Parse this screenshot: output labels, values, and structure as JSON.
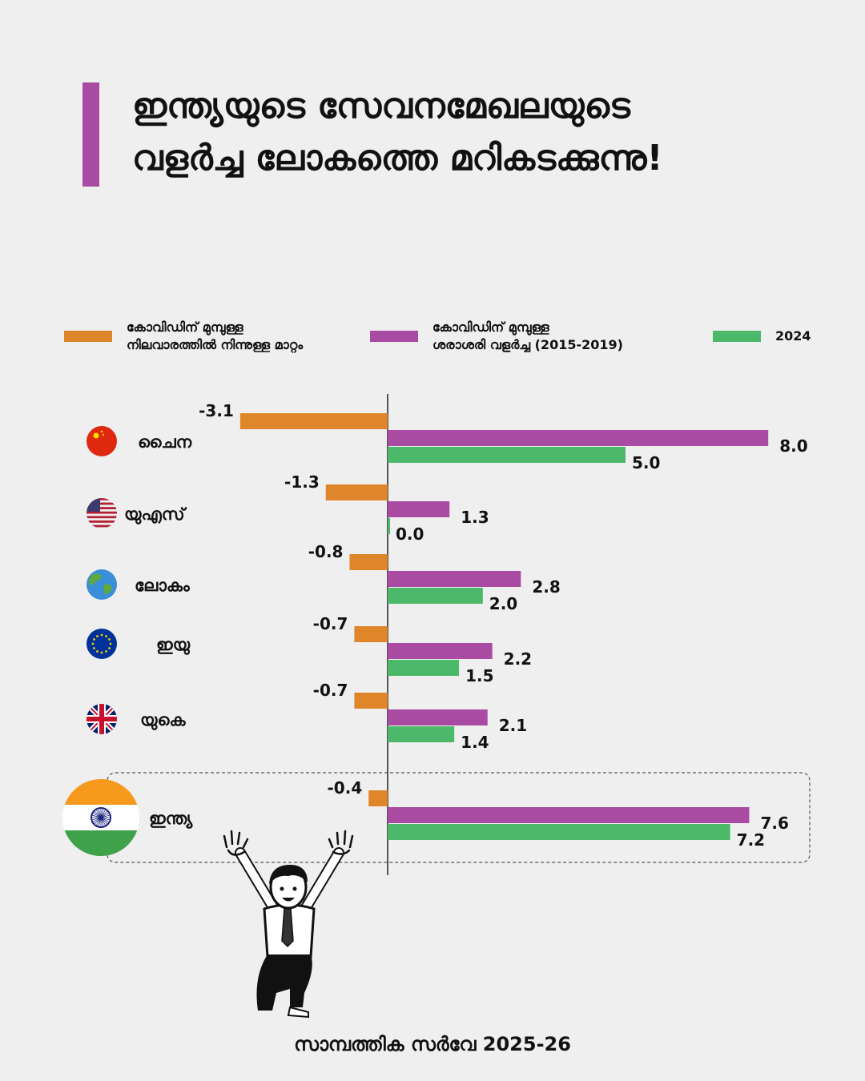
{
  "title": {
    "line1": "ഇന്ത്യയുടെ സേവനമേഖലയുടെ",
    "line2": "വളർച്ച ലോകത്തെ മറികടക്കുന്നു!"
  },
  "colors": {
    "accent": "#a94ba3",
    "orange": "#e0862a",
    "purple": "#a94ba3",
    "green": "#4cb86a"
  },
  "footer": "സാമ്പത്തിക സർവേ 2025-26",
  "chart_data": {
    "type": "bar",
    "orientation": "horizontal",
    "categories": [
      "ചൈന",
      "യുഎസ്",
      "ലോകം",
      "ഇയു",
      "യുകെ",
      "ഇന്ത്യ"
    ],
    "category_icons": [
      "china-flag-icon",
      "us-flag-icon",
      "globe-icon",
      "eu-flag-icon",
      "uk-flag-icon",
      "india-flag-icon"
    ],
    "series": [
      {
        "name": "കോവിഡിന് മുമ്പുള്ള നിലവാരത്തിൽ നിന്നുള്ള മാറ്റം",
        "legend_lines": [
          "കോവിഡിന് മുമ്പുള്ള",
          "നിലവാരത്തിൽ നിന്നുള്ള മാറ്റം"
        ],
        "color": "#e0862a",
        "values": [
          -3.1,
          -1.3,
          -0.8,
          -0.7,
          -0.7,
          -0.4
        ]
      },
      {
        "name": "കോവിഡിന് മുമ്പുള്ള ശരാശരി വളർച്ച (2015-2019)",
        "legend_lines": [
          "കോവിഡിന് മുമ്പുള്ള",
          "ശരാശരി വളർച്ച (2015-2019)"
        ],
        "color": "#a94ba3",
        "values": [
          8.0,
          1.3,
          2.8,
          2.2,
          2.1,
          7.6
        ]
      },
      {
        "name": "2024",
        "legend_lines": [
          "2024"
        ],
        "color": "#4cb86a",
        "values": [
          5.0,
          0.0,
          2.0,
          1.5,
          1.4,
          7.2
        ]
      }
    ],
    "value_labels": [
      [
        "-3.1",
        "-1.3",
        "-0.8",
        "-0.7",
        "-0.7",
        "-0.4"
      ],
      [
        "8.0",
        "1.3",
        "2.8",
        "2.2",
        "2.1",
        "7.6"
      ],
      [
        "5.0",
        "0.0",
        "2.0",
        "1.5",
        "1.4",
        "7.2"
      ]
    ],
    "highlighted_category": "ഇന്ത്യ",
    "legend_position": "top",
    "grid": false
  }
}
